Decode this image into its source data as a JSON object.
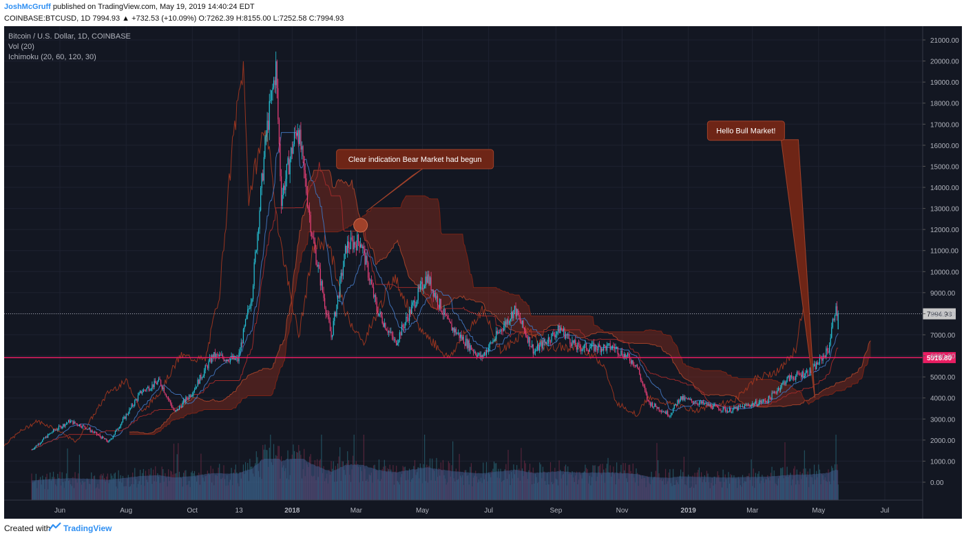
{
  "header": {
    "author": "JoshMcGruff",
    "published": " published on TradingView.com, May 19, 2019 14:40:24 EDT",
    "symbol_line": "COINBASE:BTCUSD, 1D  7994.93 ▲ +732.53 (+10.09%) O:7262.39 H:8155.00 L:7252.58 C:7994.93"
  },
  "legend": {
    "title": "Bitcoin / U.S. Dollar, 1D, COINBASE",
    "vol": "Vol (20)",
    "ichimoku": "Ichimoku (20, 60, 120, 30)"
  },
  "footer": {
    "created_with": "Created with",
    "brand": "TradingView"
  },
  "colors": {
    "up": "#26c6da",
    "down": "#ec407a",
    "cloud": "#8b2c1c",
    "baseline": "#e91e63",
    "volume_area": "#3f5a8a"
  },
  "chart_data": {
    "type": "candlestick",
    "title": "Bitcoin / U.S. Dollar, 1D, COINBASE",
    "x_ticks": [
      "Jun",
      "Aug",
      "Oct",
      "13",
      "2018",
      "Mar",
      "May",
      "Jul",
      "Sep",
      "Nov",
      "2019",
      "Mar",
      "May",
      "Jul"
    ],
    "x_tick_dates": [
      "2017-06-01",
      "2017-08-01",
      "2017-10-01",
      "2017-11-13",
      "2018-01-01",
      "2018-03-01",
      "2018-05-01",
      "2018-07-01",
      "2018-09-01",
      "2018-11-01",
      "2019-01-01",
      "2019-03-01",
      "2019-05-01",
      "2019-07-01"
    ],
    "y_ticks": [
      "21000.00",
      "20000.00",
      "19000.00",
      "18000.00",
      "17000.00",
      "16000.00",
      "15000.00",
      "14000.00",
      "13000.00",
      "12000.00",
      "11000.00",
      "10000.00",
      "9000.00",
      "8000.00",
      "7000.00",
      "6000.00",
      "5000.00",
      "4000.00",
      "3000.00",
      "2000.00",
      "1000.00",
      "0.00"
    ],
    "ylim": [
      0,
      21000
    ],
    "last_price_label": "7994.93",
    "horizontal_line_label": "5916.80",
    "price_path": [
      {
        "date": "2017-05-06",
        "close": 1550
      },
      {
        "date": "2017-05-25",
        "close": 2400
      },
      {
        "date": "2017-06-10",
        "close": 2900
      },
      {
        "date": "2017-06-25",
        "close": 2600
      },
      {
        "date": "2017-07-16",
        "close": 1900
      },
      {
        "date": "2017-08-15",
        "close": 4300
      },
      {
        "date": "2017-09-01",
        "close": 4800
      },
      {
        "date": "2017-09-15",
        "close": 3300
      },
      {
        "date": "2017-10-01",
        "close": 4300
      },
      {
        "date": "2017-10-20",
        "close": 6000
      },
      {
        "date": "2017-11-12",
        "close": 5800
      },
      {
        "date": "2017-11-25",
        "close": 9000
      },
      {
        "date": "2017-12-08",
        "close": 16500
      },
      {
        "date": "2017-12-17",
        "close": 19700
      },
      {
        "date": "2017-12-22",
        "close": 13500
      },
      {
        "date": "2018-01-06",
        "close": 17000
      },
      {
        "date": "2018-01-20",
        "close": 11500
      },
      {
        "date": "2018-02-06",
        "close": 6900
      },
      {
        "date": "2018-02-20",
        "close": 11200
      },
      {
        "date": "2018-03-05",
        "close": 11500
      },
      {
        "date": "2018-03-20",
        "close": 8200
      },
      {
        "date": "2018-04-06",
        "close": 6600
      },
      {
        "date": "2018-05-05",
        "close": 9800
      },
      {
        "date": "2018-05-25",
        "close": 7500
      },
      {
        "date": "2018-06-24",
        "close": 5900
      },
      {
        "date": "2018-07-25",
        "close": 8200
      },
      {
        "date": "2018-08-12",
        "close": 6200
      },
      {
        "date": "2018-09-05",
        "close": 7300
      },
      {
        "date": "2018-09-20",
        "close": 6400
      },
      {
        "date": "2018-10-25",
        "close": 6400
      },
      {
        "date": "2018-11-14",
        "close": 5600
      },
      {
        "date": "2018-11-25",
        "close": 3800
      },
      {
        "date": "2018-12-15",
        "close": 3200
      },
      {
        "date": "2018-12-24",
        "close": 4000
      },
      {
        "date": "2019-02-07",
        "close": 3400
      },
      {
        "date": "2019-03-15",
        "close": 3900
      },
      {
        "date": "2019-04-02",
        "close": 4900
      },
      {
        "date": "2019-04-25",
        "close": 5300
      },
      {
        "date": "2019-05-10",
        "close": 6300
      },
      {
        "date": "2019-05-16",
        "close": 8200
      },
      {
        "date": "2019-05-19",
        "close": 7995
      }
    ],
    "annotations": [
      {
        "text": "Clear indication Bear Market had begun",
        "date": "2018-03-05",
        "price": 12200
      },
      {
        "text": "Hello Bull Market!",
        "date": "2019-04-25",
        "price": 4000
      }
    ]
  }
}
